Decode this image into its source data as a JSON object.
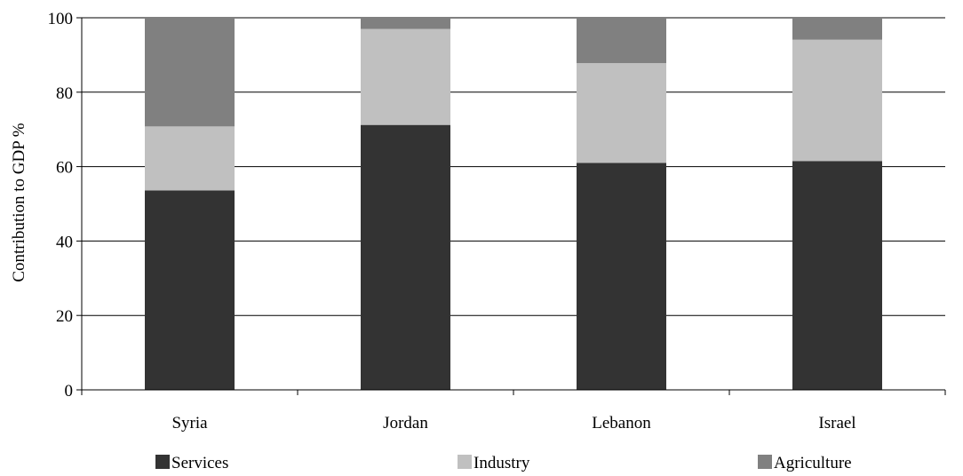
{
  "chart_data": {
    "type": "bar",
    "stacked": true,
    "title": "",
    "xlabel": "",
    "ylabel": "Contribution to GDP %",
    "ylim": [
      0,
      100
    ],
    "yticks": [
      0,
      20,
      40,
      60,
      80,
      100
    ],
    "grid": true,
    "legend_position": "bottom",
    "categories": [
      "Syria",
      "Jordan",
      "Lebanon",
      "Israel"
    ],
    "series": [
      {
        "name": "Services",
        "color": "#333333",
        "values": [
          53.6,
          71.2,
          61.0,
          61.5
        ]
      },
      {
        "name": "Industry",
        "color": "#c0c0c0",
        "values": [
          17.2,
          25.8,
          26.8,
          32.6
        ]
      },
      {
        "name": "Agriculture",
        "color": "#808080",
        "values": [
          29.2,
          3.0,
          12.2,
          5.9
        ]
      }
    ]
  }
}
